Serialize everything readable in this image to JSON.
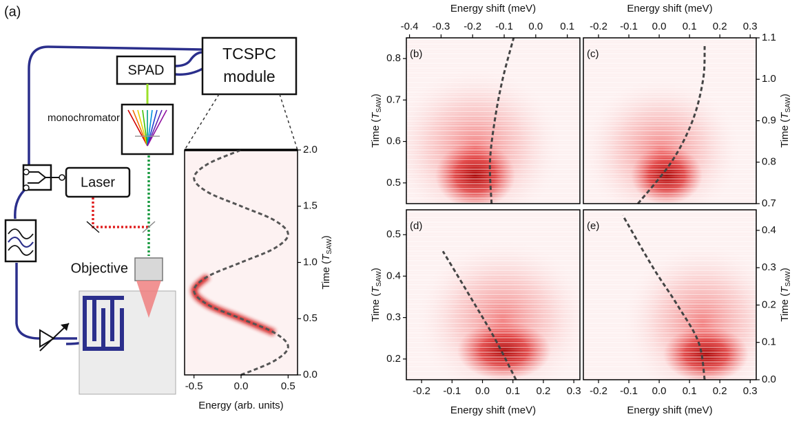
{
  "diagram": {
    "panel_label": "(a)",
    "spad": "SPAD",
    "tcspc_lines": [
      "TCSPC",
      "module"
    ],
    "monochromator": "monochromator",
    "laser": "Laser",
    "objective": "Objective"
  },
  "chart_data": [
    {
      "type": "line",
      "x_label": "Energy (arb. units)",
      "y_label": {
        "text": "Time (",
        "symbol": "T",
        "subscript": "SAW",
        "close": ")"
      },
      "x_axis": "bottom",
      "y_axis": "right",
      "xlim": [
        -0.6,
        0.6
      ],
      "xticks": [
        -0.5,
        {
          "value": 0,
          "label": "0.0"
        },
        0.5
      ],
      "ylim": [
        0,
        2
      ],
      "yticks": [
        {
          "value": 0,
          "label": "0.0"
        },
        0.5,
        {
          "value": 1,
          "label": "1.0"
        },
        1.5,
        {
          "value": 2,
          "label": "2.0"
        }
      ],
      "series": [
        {
          "color": "#d01818",
          "style": "glow",
          "x": [
            0,
            0.354,
            0.5,
            0.354,
            0,
            -0.354,
            -0.5,
            -0.354,
            0,
            0.354,
            0.5,
            0.354,
            0,
            -0.354,
            -0.5,
            -0.354,
            0
          ],
          "values": [
            null,
            null,
            null,
            0.375,
            0.5,
            0.625,
            0.75,
            0.875,
            null,
            null,
            null,
            null,
            null,
            null,
            null,
            null,
            null
          ]
        },
        {
          "color": "#555555",
          "style": "dashed",
          "x": [
            0,
            0.354,
            0.5,
            0.354,
            0,
            -0.354,
            -0.5,
            -0.354,
            0,
            0.354,
            0.5,
            0.354,
            0,
            -0.354,
            -0.5,
            -0.354,
            0
          ],
          "values": [
            0,
            0.125,
            0.25,
            0.375,
            0.5,
            0.625,
            0.75,
            0.875,
            1,
            1.125,
            1.25,
            1.375,
            1.5,
            1.625,
            1.75,
            1.875,
            2
          ]
        }
      ]
    },
    {
      "type": "line",
      "panel_label": "(b)",
      "x_label": "Energy shift (meV)",
      "y_label": {
        "text": "Time (",
        "symbol": "T",
        "subscript": "SAW",
        "close": ")"
      },
      "x_axis": "top",
      "y_axis": "left",
      "xlim": [
        -0.41,
        0.14
      ],
      "xticks": [
        -0.4,
        -0.3,
        -0.2,
        -0.1,
        {
          "value": 0,
          "label": "0.0"
        },
        0.1
      ],
      "ylim": [
        0.45,
        0.85
      ],
      "yticks": [
        0.5,
        0.6,
        0.7,
        0.8
      ],
      "series": [
        {
          "color": "#444444",
          "style": "dashed",
          "x": [
            -0.14,
            -0.145,
            -0.13,
            -0.105,
            -0.07
          ],
          "values": [
            0.45,
            0.55,
            0.65,
            0.75,
            0.85
          ]
        }
      ]
    },
    {
      "type": "line",
      "panel_label": "(c)",
      "x_label": "Energy shift (meV)",
      "y_label": {
        "text": "Time (",
        "symbol": "T",
        "subscript": "SAW",
        "close": ")"
      },
      "x_axis": "top",
      "y_axis": "right",
      "xlim": [
        -0.25,
        0.32
      ],
      "xticks": [
        -0.2,
        -0.1,
        {
          "value": 0,
          "label": "0.0"
        },
        0.1,
        0.2,
        0.3
      ],
      "ylim": [
        0.7,
        1.1
      ],
      "yticks": [
        0.7,
        0.8,
        0.9,
        {
          "value": 1,
          "label": "1.0"
        },
        1.1
      ],
      "series": [
        {
          "color": "#444444",
          "style": "dashed",
          "x": [
            -0.07,
            0.04,
            0.11,
            0.145,
            0.15
          ],
          "values": [
            0.7,
            0.8,
            0.9,
            1.0,
            1.08
          ]
        }
      ]
    },
    {
      "type": "line",
      "panel_label": "(d)",
      "x_label": "Energy shift (meV)",
      "y_label": {
        "text": "Time (",
        "symbol": "T",
        "subscript": "SAW",
        "close": ")"
      },
      "x_axis": "bottom",
      "y_axis": "left",
      "xlim": [
        -0.25,
        0.32
      ],
      "xticks": [
        -0.2,
        -0.1,
        {
          "value": 0,
          "label": "0.0"
        },
        0.1,
        0.2,
        0.3
      ],
      "ylim": [
        0.15,
        0.56
      ],
      "yticks": [
        0.2,
        0.3,
        0.4,
        0.5
      ],
      "series": [
        {
          "color": "#444444",
          "style": "dashed",
          "x": [
            0.11,
            0.04,
            -0.04,
            -0.13
          ],
          "values": [
            0.15,
            0.25,
            0.35,
            0.46
          ]
        }
      ]
    },
    {
      "type": "line",
      "panel_label": "(e)",
      "x_label": "Energy shift (meV)",
      "y_label": {
        "text": "Time (",
        "symbol": "T",
        "subscript": "SAW",
        "close": ")"
      },
      "x_axis": "bottom",
      "y_axis": "right",
      "xlim": [
        -0.25,
        0.32
      ],
      "xticks": [
        -0.2,
        -0.1,
        {
          "value": 0,
          "label": "0.0"
        },
        0.1,
        0.2,
        0.3
      ],
      "ylim": [
        0,
        0.455
      ],
      "yticks": [
        {
          "value": 0,
          "label": "0.0"
        },
        0.1,
        0.2,
        0.3,
        0.4
      ],
      "series": [
        {
          "color": "#444444",
          "style": "dashed",
          "x": [
            0.15,
            0.13,
            0.06,
            -0.02,
            -0.12
          ],
          "values": [
            0,
            0.1,
            0.2,
            0.3,
            0.44
          ]
        }
      ]
    }
  ]
}
